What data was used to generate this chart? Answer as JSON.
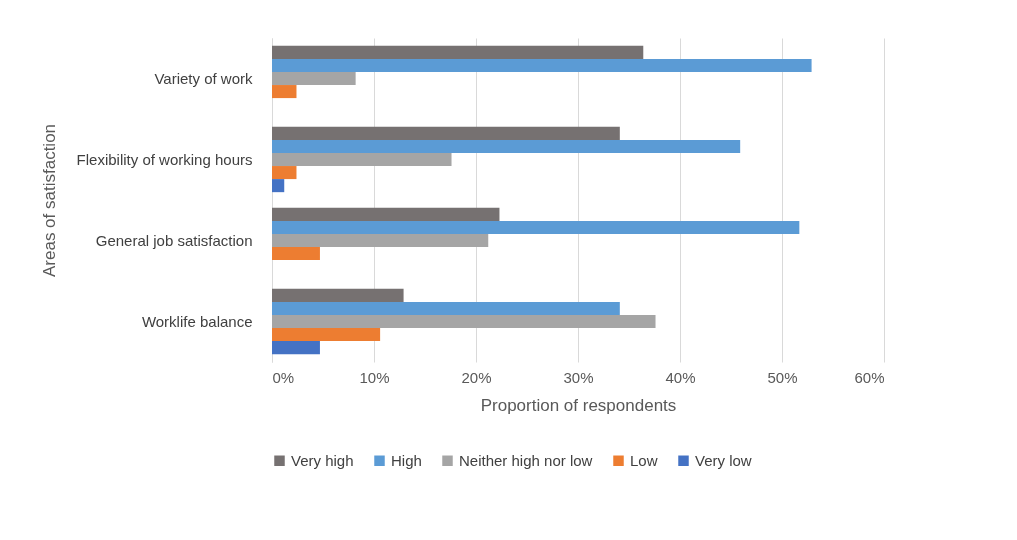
{
  "chart_data": {
    "type": "bar",
    "orientation": "horizontal",
    "xlabel": "Proportion of respondents",
    "ylabel": "Areas of satisfaction",
    "categories": [
      "Variety of work",
      "Flexibility of working hours",
      "General job satisfaction",
      "Worklife balance"
    ],
    "series": [
      {
        "name": "Very high",
        "color": "#767171",
        "values": [
          36.4,
          34.1,
          22.3,
          12.9
        ]
      },
      {
        "name": "High",
        "color": "#5b9bd5",
        "values": [
          52.9,
          45.9,
          51.7,
          34.1
        ]
      },
      {
        "name": "Neither high nor low",
        "color": "#a5a5a5",
        "values": [
          8.2,
          17.6,
          21.2,
          37.6
        ]
      },
      {
        "name": "Low",
        "color": "#ed7d31",
        "values": [
          2.4,
          2.4,
          4.7,
          10.6
        ]
      },
      {
        "name": "Very low",
        "color": "#4472c4",
        "values": [
          null,
          1.2,
          null,
          4.7
        ]
      }
    ],
    "xlim": [
      0,
      60
    ],
    "xticks": [
      {
        "value": 0,
        "label": "0%"
      },
      {
        "value": 10,
        "label": "10%"
      },
      {
        "value": 20,
        "label": "20%"
      },
      {
        "value": 30,
        "label": "30%"
      },
      {
        "value": 40,
        "label": "40%"
      },
      {
        "value": 50,
        "label": "50%"
      },
      {
        "value": 60,
        "label": "60%"
      }
    ],
    "grid": "x",
    "legend": "bottom"
  }
}
